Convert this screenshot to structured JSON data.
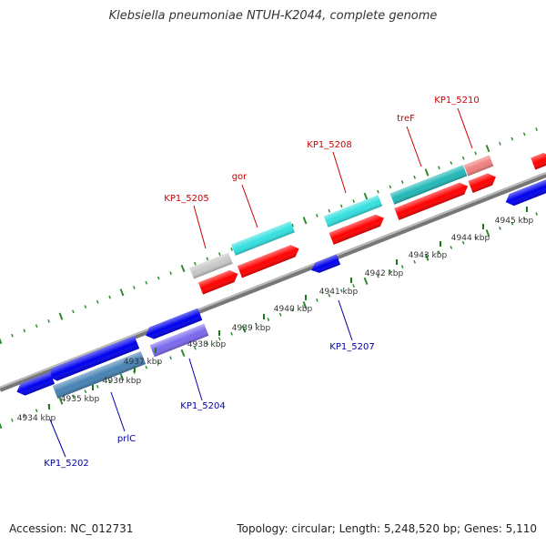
{
  "title": "Klebsiella pneumoniae NTUH-K2044, complete genome",
  "footer": {
    "accession": "Accession: NC_012731",
    "topology": "Topology: circular; Length: 5,248,520 bp; Genes: 5,110"
  },
  "colors": {
    "forward_label": "#cc0000",
    "reverse_label": "#0000aa",
    "backbone": "#888888",
    "forward_tick": "#2e8b2e",
    "reverse_tick": "#2e8b2e",
    "kbp_tick": "#1a7a1a"
  },
  "kbp_ticks": [
    {
      "label": "4934 kbp"
    },
    {
      "label": "4935 kbp"
    },
    {
      "label": "4936 kbp"
    },
    {
      "label": "4937 kbp"
    },
    {
      "label": "4938 kbp"
    },
    {
      "label": "4939 kbp"
    },
    {
      "label": "4940 kbp"
    },
    {
      "label": "4941 kbp"
    },
    {
      "label": "4942 kbp"
    },
    {
      "label": "4943 kbp"
    },
    {
      "label": "4944 kbp"
    },
    {
      "label": "4945 kbp"
    }
  ],
  "gene_labels": [
    {
      "text": "KP1_5205",
      "strand": "forward"
    },
    {
      "text": "gor",
      "strand": "forward"
    },
    {
      "text": "KP1_5208",
      "strand": "forward"
    },
    {
      "text": "treF",
      "strand": "forward"
    },
    {
      "text": "KP1_5210",
      "strand": "forward"
    },
    {
      "text": "KP1_5207",
      "strand": "reverse"
    },
    {
      "text": "KP1_5204",
      "strand": "reverse"
    },
    {
      "text": "prlC",
      "strand": "reverse"
    },
    {
      "text": "KP1_5202",
      "strand": "reverse"
    }
  ],
  "features": [
    {
      "name": "feature-kp1-5205-grey",
      "color": "#c8c8c8"
    },
    {
      "name": "feature-gor-cyan",
      "color": "#33e0e0"
    },
    {
      "name": "feature-kp1-5208-cyan",
      "color": "#33e0e0"
    },
    {
      "name": "feature-tref-teal",
      "color": "#22b8b8"
    },
    {
      "name": "feature-kp1-5210-pink",
      "color": "#f08080"
    },
    {
      "name": "feature-red-1",
      "color": "#ff0000"
    },
    {
      "name": "feature-red-2",
      "color": "#ff0000"
    },
    {
      "name": "feature-red-3",
      "color": "#ff0000"
    },
    {
      "name": "feature-red-4",
      "color": "#ff0000"
    },
    {
      "name": "feature-red-5",
      "color": "#ff0000"
    },
    {
      "name": "feature-red-6",
      "color": "#ff0000"
    },
    {
      "name": "feature-blue-1",
      "color": "#0000ee"
    },
    {
      "name": "feature-blue-2",
      "color": "#0000ee"
    },
    {
      "name": "feature-blue-3",
      "color": "#0000ee"
    },
    {
      "name": "feature-blue-4",
      "color": "#0000ee"
    },
    {
      "name": "feature-blue-5",
      "color": "#0000ee"
    },
    {
      "name": "feature-steelblue",
      "color": "#4682b4"
    },
    {
      "name": "feature-purple",
      "color": "#7b68ee"
    }
  ]
}
